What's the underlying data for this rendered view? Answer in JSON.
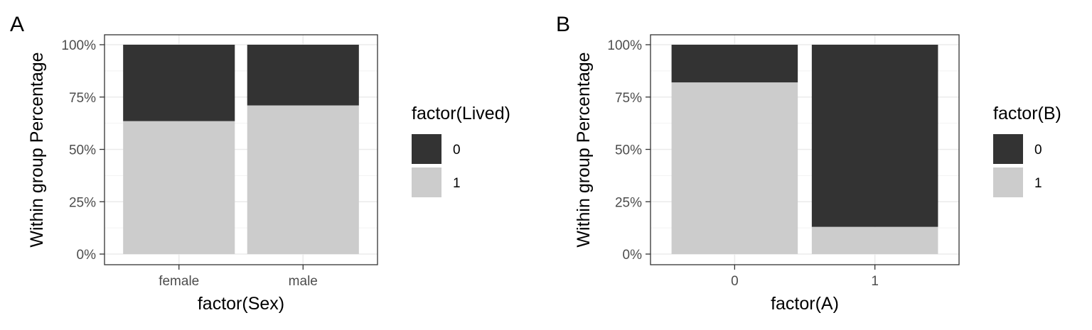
{
  "chart_data": [
    {
      "type": "bar",
      "stacked": true,
      "tag": "A",
      "xlabel": "factor(Sex)",
      "ylabel": "Within group Percentage",
      "categories": [
        "female",
        "male"
      ],
      "ylim": [
        0,
        1
      ],
      "yticks": [
        "0%",
        "25%",
        "50%",
        "75%",
        "100%"
      ],
      "grid": true,
      "legend_title": "factor(Lived)",
      "legend_position": "right",
      "series": [
        {
          "name": "0",
          "color": "#333333",
          "values": [
            0.365,
            0.29
          ]
        },
        {
          "name": "1",
          "color": "#cccccc",
          "values": [
            0.635,
            0.71
          ]
        }
      ]
    },
    {
      "type": "bar",
      "stacked": true,
      "tag": "B",
      "xlabel": "factor(A)",
      "ylabel": "Within group Percentage",
      "categories": [
        "0",
        "1"
      ],
      "ylim": [
        0,
        1
      ],
      "yticks": [
        "0%",
        "25%",
        "50%",
        "75%",
        "100%"
      ],
      "grid": true,
      "legend_title": "factor(B)",
      "legend_position": "right",
      "series": [
        {
          "name": "0",
          "color": "#333333",
          "values": [
            0.18,
            0.87
          ]
        },
        {
          "name": "1",
          "color": "#cccccc",
          "values": [
            0.82,
            0.13
          ]
        }
      ]
    }
  ]
}
